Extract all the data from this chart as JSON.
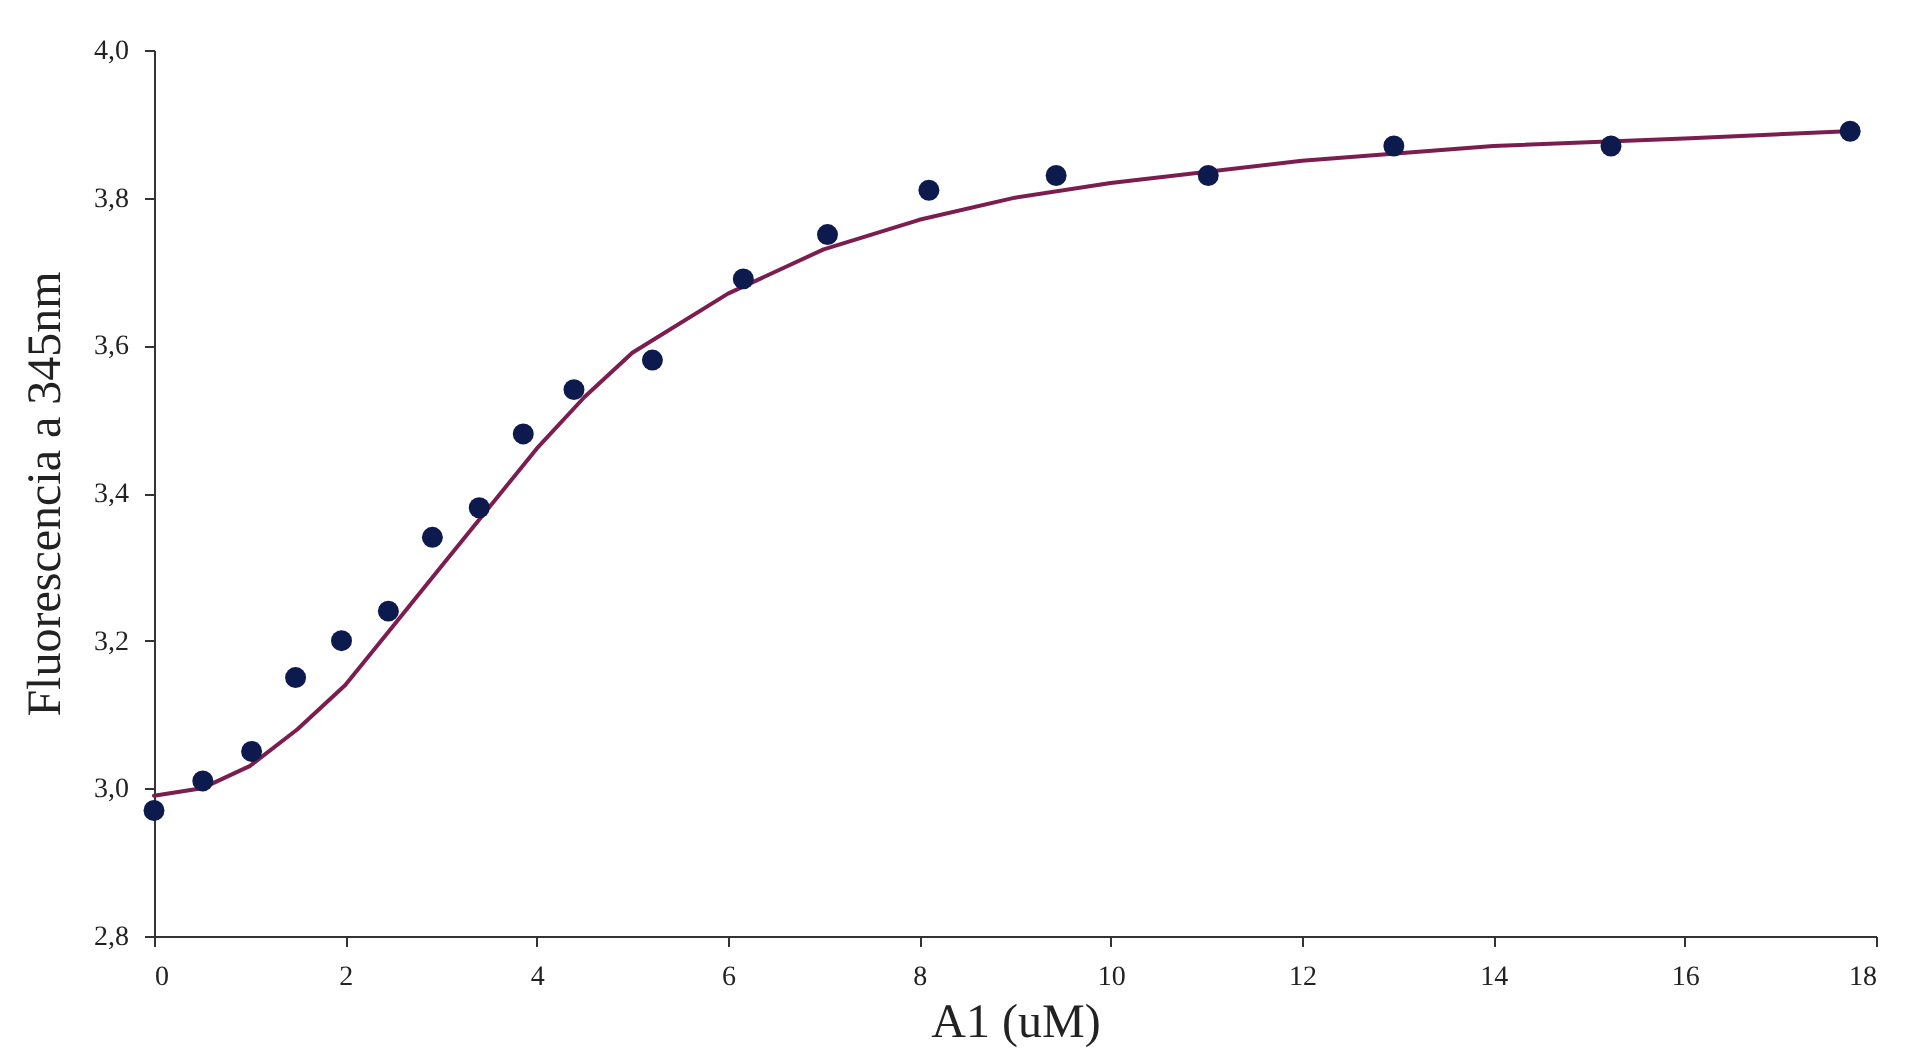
{
  "chart_data": {
    "type": "scatter",
    "xlabel": "A1 (uM)",
    "ylabel": "Fluorescencia a 345nm",
    "xlim": [
      0,
      18
    ],
    "xticks": [
      0,
      2,
      4,
      6,
      8,
      10,
      12,
      14,
      16,
      18
    ],
    "ylim": [
      2.8,
      4.0
    ],
    "yticks": [
      {
        "value": 2.8,
        "label": "2,8"
      },
      {
        "value": 3.0,
        "label": "3,0"
      },
      {
        "value": 3.2,
        "label": "3,2"
      },
      {
        "value": 3.4,
        "label": "3,4"
      },
      {
        "value": 3.6,
        "label": "3,6"
      },
      {
        "value": 3.8,
        "label": "3,8"
      },
      {
        "value": 4.0,
        "label": "4,0"
      }
    ],
    "grid": false,
    "series": [
      {
        "type": "line",
        "color": "#7b1d4f",
        "line_style": "solid",
        "x": [
          0,
          0.5,
          1,
          1.5,
          2,
          2.5,
          3,
          3.5,
          4,
          4.5,
          5,
          6,
          7,
          8,
          9,
          10,
          12,
          14,
          16,
          17.7
        ],
        "values": [
          2.99,
          3.0,
          3.03,
          3.08,
          3.14,
          3.22,
          3.3,
          3.38,
          3.46,
          3.53,
          3.59,
          3.67,
          3.73,
          3.77,
          3.8,
          3.82,
          3.85,
          3.87,
          3.88,
          3.89
        ]
      },
      {
        "color": "#0d1a4d",
        "marker": "circle",
        "x": [
          0,
          0.51,
          1.02,
          1.48,
          1.96,
          2.45,
          2.91,
          3.4,
          3.86,
          4.39,
          5.21,
          6.16,
          7.04,
          8.1,
          9.43,
          11.02,
          12.96,
          15.23,
          17.73
        ],
        "values": [
          2.97,
          3.01,
          3.05,
          3.15,
          3.2,
          3.24,
          3.34,
          3.38,
          3.48,
          3.54,
          3.58,
          3.69,
          3.75,
          3.81,
          3.83,
          3.83,
          3.87,
          3.87,
          3.89
        ]
      }
    ]
  }
}
